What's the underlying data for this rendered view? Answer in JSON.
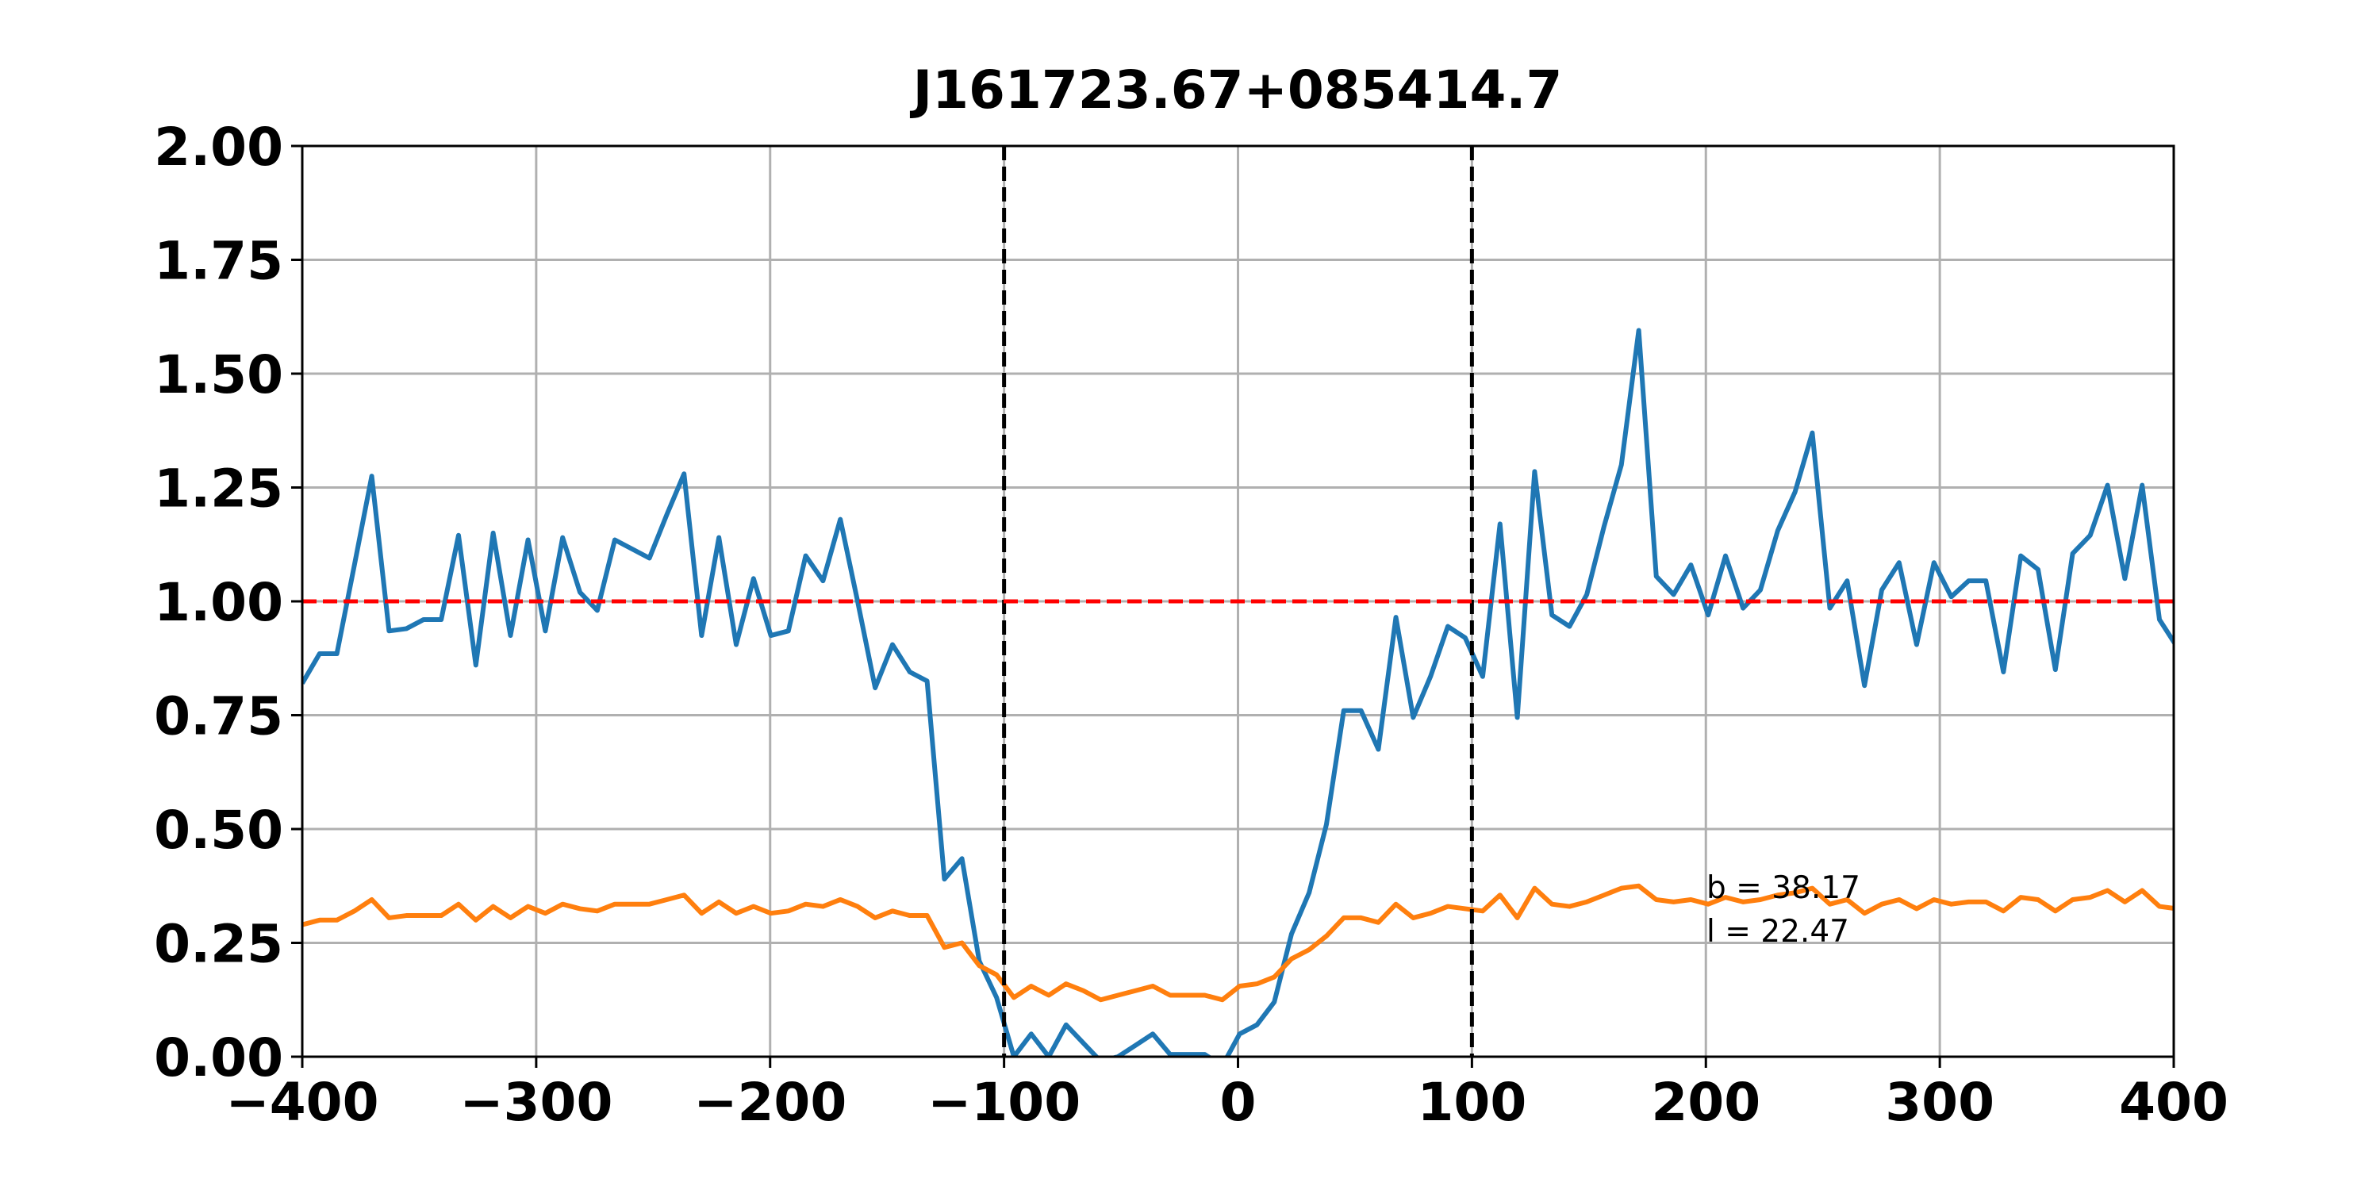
{
  "chart_data": {
    "type": "line",
    "title": "J161723.67+085414.7",
    "x": [
      -400,
      -392.6,
      -385.2,
      -377.7,
      -370.3,
      -362.9,
      -355.5,
      -348.1,
      -340.6,
      -333.2,
      -325.8,
      -318.4,
      -311.0,
      -303.5,
      -296.1,
      -288.7,
      -281.3,
      -273.9,
      -266.4,
      -259.0,
      -251.6,
      -244.2,
      -236.8,
      -229.3,
      -221.9,
      -214.5,
      -207.1,
      -199.7,
      -192.2,
      -184.8,
      -177.4,
      -170.0,
      -162.6,
      -155.1,
      -147.7,
      -140.3,
      -132.9,
      -125.5,
      -118.0,
      -110.6,
      -103.2,
      -95.8,
      -88.4,
      -80.9,
      -73.5,
      -66.1,
      -58.7,
      -51.3,
      -43.8,
      -36.4,
      -29.0,
      -21.6,
      -14.2,
      -6.7,
      0.7,
      8.1,
      15.5,
      22.9,
      30.4,
      37.8,
      45.2,
      52.6,
      60.0,
      67.5,
      74.9,
      82.3,
      89.7,
      97.1,
      104.6,
      112.0,
      119.4,
      126.8,
      134.2,
      141.7,
      149.1,
      156.5,
      163.9,
      171.3,
      178.8,
      186.2,
      193.6,
      201.0,
      208.4,
      215.9,
      223.3,
      230.7,
      238.1,
      245.5,
      253.0,
      260.4,
      267.8,
      275.2,
      282.6,
      290.1,
      297.5,
      304.9,
      312.3,
      319.7,
      327.2,
      334.6,
      342.0,
      349.4,
      356.8,
      364.3,
      371.7,
      379.1,
      386.5,
      393.9,
      401.4
    ],
    "series": [
      {
        "color": "#1f77b4",
        "values": [
          0.82,
          0.885,
          0.885,
          1.08,
          1.275,
          0.935,
          0.94,
          0.96,
          0.96,
          1.145,
          0.86,
          1.15,
          0.925,
          1.135,
          0.935,
          1.14,
          1.02,
          0.98,
          1.135,
          1.115,
          1.095,
          1.19,
          1.28,
          0.925,
          1.14,
          0.905,
          1.05,
          0.925,
          0.935,
          1.1,
          1.045,
          1.18,
          1.0,
          0.81,
          0.905,
          0.845,
          0.825,
          0.39,
          0.435,
          0.21,
          0.13,
          0.0,
          0.05,
          0.0,
          0.07,
          0.03,
          -0.01,
          0.0,
          0.025,
          0.05,
          0.005,
          0.005,
          0.005,
          -0.02,
          0.05,
          0.07,
          0.12,
          0.27,
          0.36,
          0.51,
          0.76,
          0.76,
          0.675,
          0.965,
          0.745,
          0.835,
          0.945,
          0.92,
          0.835,
          1.17,
          0.745,
          1.285,
          0.97,
          0.945,
          1.015,
          1.165,
          1.3,
          1.595,
          1.055,
          1.015,
          1.08,
          0.97,
          1.1,
          0.985,
          1.025,
          1.155,
          1.24,
          1.37,
          0.985,
          1.045,
          0.815,
          1.025,
          1.085,
          0.905,
          1.085,
          1.01,
          1.045,
          1.045,
          0.845,
          1.1,
          1.07,
          0.85,
          1.105,
          1.145,
          1.255,
          1.05,
          1.255,
          0.96,
          0.9
        ]
      },
      {
        "color": "#ff7f0e",
        "values": [
          0.29,
          0.3,
          0.3,
          0.32,
          0.345,
          0.305,
          0.31,
          0.31,
          0.31,
          0.335,
          0.3,
          0.33,
          0.305,
          0.33,
          0.315,
          0.335,
          0.325,
          0.32,
          0.335,
          0.335,
          0.335,
          0.345,
          0.355,
          0.315,
          0.34,
          0.315,
          0.33,
          0.315,
          0.32,
          0.335,
          0.33,
          0.345,
          0.33,
          0.305,
          0.32,
          0.31,
          0.31,
          0.24,
          0.25,
          0.2,
          0.18,
          0.13,
          0.155,
          0.135,
          0.16,
          0.145,
          0.125,
          0.135,
          0.145,
          0.155,
          0.135,
          0.135,
          0.135,
          0.125,
          0.155,
          0.16,
          0.175,
          0.215,
          0.235,
          0.265,
          0.305,
          0.305,
          0.295,
          0.335,
          0.305,
          0.315,
          0.33,
          0.325,
          0.32,
          0.355,
          0.305,
          0.37,
          0.335,
          0.33,
          0.34,
          0.355,
          0.37,
          0.375,
          0.345,
          0.34,
          0.345,
          0.335,
          0.35,
          0.34,
          0.345,
          0.355,
          0.36,
          0.37,
          0.335,
          0.345,
          0.315,
          0.335,
          0.345,
          0.325,
          0.345,
          0.335,
          0.34,
          0.34,
          0.32,
          0.35,
          0.345,
          0.32,
          0.345,
          0.35,
          0.365,
          0.34,
          0.365,
          0.33,
          0.325
        ]
      }
    ],
    "xlim": [
      -400,
      400
    ],
    "xticks": [
      {
        "value": -400,
        "label": "−400"
      },
      {
        "value": -300,
        "label": "−300"
      },
      {
        "value": -200,
        "label": "−200"
      },
      {
        "value": -100,
        "label": "−100"
      },
      0,
      100,
      200,
      300,
      400
    ],
    "ylim": [
      0,
      2
    ],
    "yticks": [
      {
        "value": 0,
        "label": "0.00"
      },
      {
        "value": 0.25,
        "label": "0.25"
      },
      {
        "value": 0.5,
        "label": "0.50"
      },
      {
        "value": 0.75,
        "label": "0.75"
      },
      {
        "value": 1,
        "label": "1.00"
      },
      {
        "value": 1.25,
        "label": "1.25"
      },
      {
        "value": 1.5,
        "label": "1.50"
      },
      {
        "value": 1.75,
        "label": "1.75"
      },
      {
        "value": 2,
        "label": "2.00"
      }
    ],
    "grid": true,
    "vlines": [
      -100,
      100
    ],
    "vline_color": "#000000",
    "hline": 1.0,
    "hline_color": "#ff0000",
    "annotations": [
      "b = 38.17",
      "l = 22.47"
    ]
  }
}
